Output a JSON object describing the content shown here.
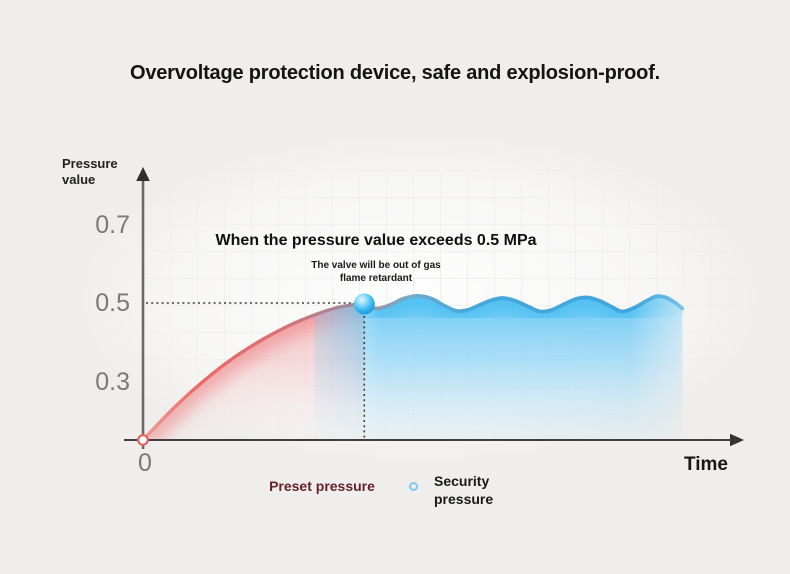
{
  "page": {
    "title": "Overvoltage protection device, safe and explosion-proof.",
    "background": "#efeeec"
  },
  "chart_data": {
    "type": "area",
    "xlabel": "Time",
    "ylabel": "Pressure value",
    "origin_label": "0",
    "unit": "MPa",
    "yticks": [
      0.7,
      0.5,
      0.3
    ],
    "ylim": [
      0,
      0.8
    ],
    "grid": true,
    "threshold": 0.5,
    "threshold_marker": {
      "t": 0.375,
      "value": 0.5
    },
    "annotation": {
      "headline": "When the pressure value exceeds 0.5 MPa",
      "sub_lines": [
        "The valve will be out of gas",
        "flame retardant"
      ]
    },
    "series": [
      {
        "name": "Preset pressure",
        "role": "rising-curve",
        "stroke_color": "#ec6a66",
        "fill_color": "#ee7d81",
        "points": [
          [
            0,
            0
          ],
          [
            0.029,
            0.066
          ],
          [
            0.063,
            0.139
          ],
          [
            0.105,
            0.219
          ],
          [
            0.151,
            0.296
          ],
          [
            0.198,
            0.361
          ],
          [
            0.246,
            0.416
          ],
          [
            0.29,
            0.456
          ],
          [
            0.327,
            0.482
          ],
          [
            0.354,
            0.493
          ],
          [
            0.375,
            0.5
          ]
        ]
      },
      {
        "name": "Security pressure",
        "role": "oscillating-curve",
        "stroke_color": "#41a6da",
        "fill_color": "#6ec9f4",
        "points": [
          [
            0.375,
            0.5
          ],
          [
            0.395,
            0.48
          ],
          [
            0.419,
            0.493
          ],
          [
            0.442,
            0.516
          ],
          [
            0.466,
            0.526
          ],
          [
            0.49,
            0.515
          ],
          [
            0.51,
            0.491
          ],
          [
            0.531,
            0.471
          ],
          [
            0.551,
            0.475
          ],
          [
            0.571,
            0.493
          ],
          [
            0.592,
            0.511
          ],
          [
            0.612,
            0.518
          ],
          [
            0.632,
            0.507
          ],
          [
            0.653,
            0.487
          ],
          [
            0.673,
            0.469
          ],
          [
            0.693,
            0.475
          ],
          [
            0.714,
            0.496
          ],
          [
            0.734,
            0.515
          ],
          [
            0.754,
            0.52
          ],
          [
            0.775,
            0.507
          ],
          [
            0.795,
            0.485
          ],
          [
            0.812,
            0.469
          ],
          [
            0.832,
            0.482
          ],
          [
            0.853,
            0.507
          ],
          [
            0.87,
            0.524
          ],
          [
            0.886,
            0.52
          ],
          [
            0.9,
            0.504
          ],
          [
            0.914,
            0.48
          ]
        ]
      }
    ],
    "legend": [
      {
        "label": "Preset pressure",
        "text_color": "#64222a",
        "marker": "none"
      },
      {
        "label": "Security pressure",
        "text_color": "#191919",
        "marker": "open-circle",
        "marker_color": "#7ecaed"
      }
    ],
    "colors": {
      "axis": "#4a4a4a",
      "tick_label": "#7a7a7a",
      "dotted_guide": "#3c3c3c",
      "marker_dot": "#35b8f1",
      "origin_marker_stroke": "#e4625f"
    },
    "legend_position": "bottom"
  }
}
